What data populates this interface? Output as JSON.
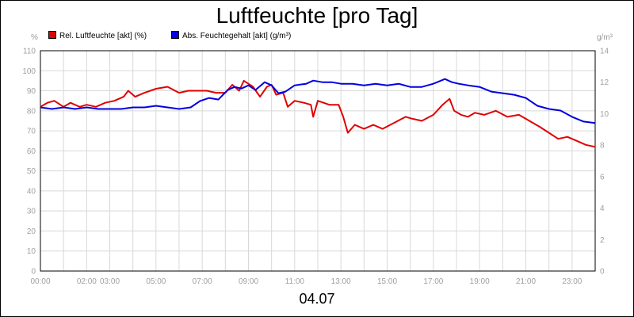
{
  "chart_data": {
    "type": "line",
    "title": "Luftfeuchte [pro Tag]",
    "date_label": "04.07",
    "ylabel_left": "%",
    "ylabel_right": "g/m³",
    "ylim_left": [
      0,
      110
    ],
    "ylim_right": [
      0,
      14
    ],
    "yticks_left": [
      0,
      10,
      20,
      30,
      40,
      50,
      60,
      70,
      80,
      90,
      100,
      110
    ],
    "yticks_right": [
      0,
      2,
      4,
      6,
      8,
      10,
      12,
      14
    ],
    "xlim": [
      0,
      24
    ],
    "xticks": [
      {
        "x": 0,
        "label": "00:00"
      },
      {
        "x": 2,
        "label": "02:00"
      },
      {
        "x": 3,
        "label": "03:00"
      },
      {
        "x": 5,
        "label": "05:00"
      },
      {
        "x": 7,
        "label": "07:00"
      },
      {
        "x": 9,
        "label": "09:00"
      },
      {
        "x": 11,
        "label": "11:00"
      },
      {
        "x": 13,
        "label": "13:00"
      },
      {
        "x": 15,
        "label": "15:00"
      },
      {
        "x": 17,
        "label": "17:00"
      },
      {
        "x": 19,
        "label": "19:00"
      },
      {
        "x": 21,
        "label": "21:00"
      },
      {
        "x": 23,
        "label": "23:00"
      }
    ],
    "grid": true,
    "legend_position": "top-left",
    "series": [
      {
        "name": "Rel. Luftfeuchte [akt] (%)",
        "color": "#e00000",
        "axis": "left",
        "points": [
          [
            0,
            82
          ],
          [
            0.3,
            84
          ],
          [
            0.6,
            85
          ],
          [
            1.0,
            82
          ],
          [
            1.3,
            84
          ],
          [
            1.7,
            82
          ],
          [
            2.0,
            83
          ],
          [
            2.4,
            82
          ],
          [
            2.8,
            84
          ],
          [
            3.2,
            85
          ],
          [
            3.6,
            87
          ],
          [
            3.8,
            90
          ],
          [
            4.1,
            87
          ],
          [
            4.5,
            89
          ],
          [
            5.0,
            91
          ],
          [
            5.5,
            92
          ],
          [
            6.0,
            89
          ],
          [
            6.4,
            90
          ],
          [
            6.8,
            90
          ],
          [
            7.2,
            90
          ],
          [
            7.6,
            89
          ],
          [
            8.0,
            89
          ],
          [
            8.3,
            93
          ],
          [
            8.6,
            90
          ],
          [
            8.8,
            95
          ],
          [
            9.2,
            92
          ],
          [
            9.5,
            87
          ],
          [
            9.8,
            92
          ],
          [
            10.0,
            93
          ],
          [
            10.2,
            88
          ],
          [
            10.5,
            89
          ],
          [
            10.7,
            82
          ],
          [
            11.0,
            85
          ],
          [
            11.4,
            84
          ],
          [
            11.7,
            83
          ],
          [
            11.8,
            77
          ],
          [
            12.0,
            85
          ],
          [
            12.5,
            83
          ],
          [
            12.9,
            83
          ],
          [
            13.1,
            77
          ],
          [
            13.3,
            69
          ],
          [
            13.6,
            73
          ],
          [
            14.0,
            71
          ],
          [
            14.4,
            73
          ],
          [
            14.8,
            71
          ],
          [
            15.3,
            74
          ],
          [
            15.8,
            77
          ],
          [
            16.1,
            76
          ],
          [
            16.5,
            75
          ],
          [
            17.0,
            78
          ],
          [
            17.4,
            83
          ],
          [
            17.7,
            86
          ],
          [
            17.9,
            80
          ],
          [
            18.2,
            78
          ],
          [
            18.5,
            77
          ],
          [
            18.8,
            79
          ],
          [
            19.2,
            78
          ],
          [
            19.7,
            80
          ],
          [
            20.2,
            77
          ],
          [
            20.7,
            78
          ],
          [
            21.0,
            76
          ],
          [
            21.3,
            74
          ],
          [
            21.6,
            72
          ],
          [
            22.0,
            69
          ],
          [
            22.4,
            66
          ],
          [
            22.8,
            67
          ],
          [
            23.2,
            65
          ],
          [
            23.6,
            63
          ],
          [
            24.0,
            62
          ]
        ]
      },
      {
        "name": "Abs. Feuchtegehalt [akt] (g/m³)",
        "color": "#0000e0",
        "axis": "right",
        "points": [
          [
            0,
            10.4
          ],
          [
            0.5,
            10.3
          ],
          [
            1.0,
            10.4
          ],
          [
            1.5,
            10.3
          ],
          [
            2.0,
            10.4
          ],
          [
            2.5,
            10.3
          ],
          [
            3.0,
            10.3
          ],
          [
            3.5,
            10.3
          ],
          [
            4.0,
            10.4
          ],
          [
            4.5,
            10.4
          ],
          [
            5.0,
            10.5
          ],
          [
            5.5,
            10.4
          ],
          [
            6.0,
            10.3
          ],
          [
            6.5,
            10.4
          ],
          [
            6.9,
            10.8
          ],
          [
            7.3,
            11.0
          ],
          [
            7.7,
            10.9
          ],
          [
            8.1,
            11.5
          ],
          [
            8.4,
            11.7
          ],
          [
            8.7,
            11.6
          ],
          [
            9.0,
            11.8
          ],
          [
            9.3,
            11.5
          ],
          [
            9.7,
            12.0
          ],
          [
            10.0,
            11.8
          ],
          [
            10.3,
            11.3
          ],
          [
            10.6,
            11.4
          ],
          [
            11.0,
            11.8
          ],
          [
            11.5,
            11.9
          ],
          [
            11.8,
            12.1
          ],
          [
            12.2,
            12.0
          ],
          [
            12.6,
            12.0
          ],
          [
            13.0,
            11.9
          ],
          [
            13.5,
            11.9
          ],
          [
            14.0,
            11.8
          ],
          [
            14.5,
            11.9
          ],
          [
            15.0,
            11.8
          ],
          [
            15.5,
            11.9
          ],
          [
            16.0,
            11.7
          ],
          [
            16.5,
            11.7
          ],
          [
            17.0,
            11.9
          ],
          [
            17.5,
            12.2
          ],
          [
            17.8,
            12.0
          ],
          [
            18.1,
            11.9
          ],
          [
            18.5,
            11.8
          ],
          [
            19.0,
            11.7
          ],
          [
            19.5,
            11.4
          ],
          [
            20.0,
            11.3
          ],
          [
            20.5,
            11.2
          ],
          [
            21.0,
            11.0
          ],
          [
            21.5,
            10.5
          ],
          [
            22.0,
            10.3
          ],
          [
            22.5,
            10.2
          ],
          [
            23.0,
            9.8
          ],
          [
            23.5,
            9.5
          ],
          [
            24.0,
            9.4
          ]
        ]
      }
    ]
  }
}
